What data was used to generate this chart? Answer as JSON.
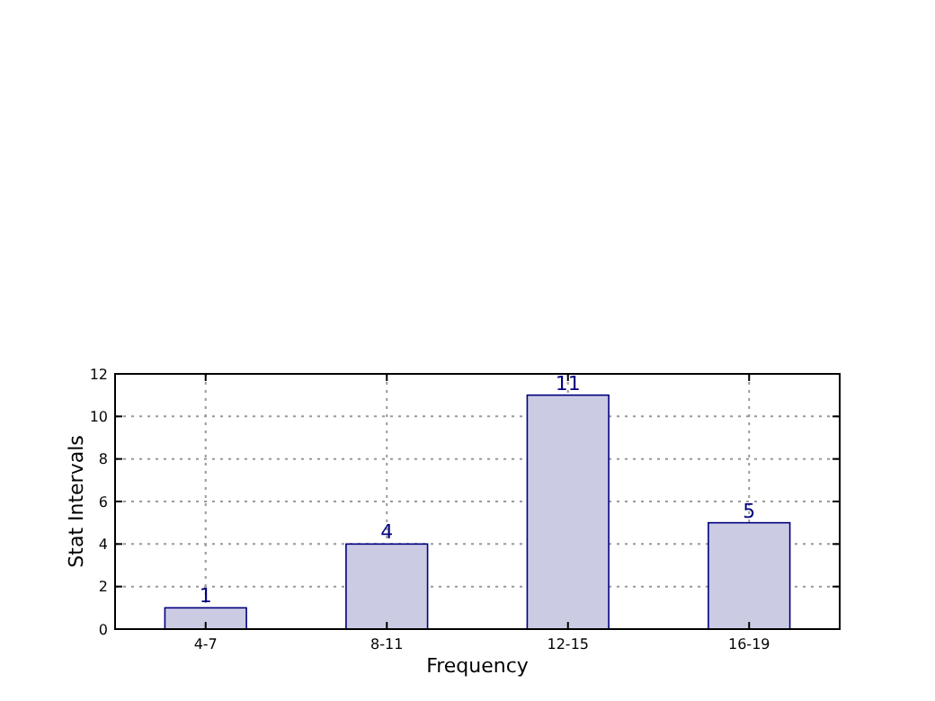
{
  "chart_data": {
    "type": "bar",
    "xlabel": "Frequency",
    "ylabel": "Stat Intervals",
    "categories": [
      "4-7",
      "8-11",
      "12-15",
      "16-19"
    ],
    "values": [
      1,
      4,
      11,
      5
    ],
    "color": "#cbcbe4",
    "ylim": [
      0,
      12
    ],
    "yticks": [
      0,
      2,
      4,
      6,
      8,
      10,
      12
    ],
    "grid": true,
    "data_labels": true
  }
}
